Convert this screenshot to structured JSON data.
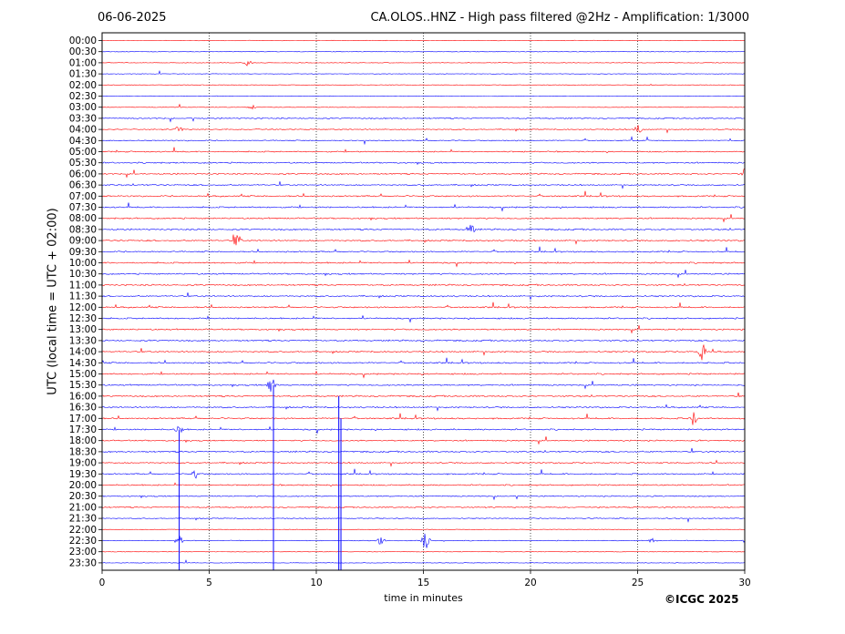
{
  "header": {
    "date": "06-06-2025",
    "title": "CA.OLOS..HNZ - High pass filtered @2Hz - Amplification: 1/3000"
  },
  "footer": {
    "copyright": "©ICGC 2025"
  },
  "chart_data": {
    "type": "line",
    "title": "CA.OLOS..HNZ - High pass filtered @2Hz - Amplification: 1/3000",
    "xlabel": "time in minutes",
    "ylabel": "UTC (local time = UTC + 02:00)",
    "xlim": [
      0,
      30
    ],
    "xticks": [
      "0",
      "5",
      "10",
      "15",
      "20",
      "25",
      "30"
    ],
    "grid": "vertical dotted lines at 5-minute intervals",
    "trace_colors": [
      "#ff0000",
      "#0000ff"
    ],
    "rows": [
      "00:00",
      "00:30",
      "01:00",
      "01:30",
      "02:00",
      "02:30",
      "03:00",
      "03:30",
      "04:00",
      "04:30",
      "05:00",
      "05:30",
      "06:00",
      "06:30",
      "07:00",
      "07:30",
      "08:00",
      "08:30",
      "09:00",
      "09:30",
      "10:00",
      "10:30",
      "11:00",
      "11:30",
      "12:00",
      "12:30",
      "13:00",
      "13:30",
      "14:00",
      "14:30",
      "15:00",
      "15:30",
      "16:00",
      "16:30",
      "17:00",
      "17:30",
      "18:00",
      "18:30",
      "19:00",
      "19:30",
      "20:00",
      "20:30",
      "21:00",
      "21:30",
      "22:00",
      "22:30",
      "23:00",
      "23:30"
    ],
    "activity": [
      0.05,
      0.05,
      0.1,
      0.05,
      0.05,
      0.05,
      0.1,
      0.6,
      0.5,
      0.5,
      0.6,
      0.7,
      0.7,
      0.7,
      0.8,
      0.8,
      0.8,
      0.8,
      0.8,
      0.7,
      0.8,
      0.8,
      0.8,
      0.8,
      0.8,
      0.8,
      0.8,
      0.8,
      0.8,
      0.8,
      0.8,
      0.8,
      0.8,
      0.8,
      0.8,
      0.8,
      0.7,
      0.8,
      0.7,
      0.7,
      0.7,
      0.6,
      0.6,
      0.4,
      0.05,
      0.2,
      0.05,
      0.1
    ],
    "events": [
      {
        "row": "01:00",
        "minute": 6.8,
        "amp": 4
      },
      {
        "row": "03:00",
        "minute": 7.0,
        "amp": 3
      },
      {
        "row": "04:00",
        "minute": 3.6,
        "amp": 4
      },
      {
        "row": "04:00",
        "minute": 25.0,
        "amp": 5
      },
      {
        "row": "06:00",
        "minute": 30.0,
        "amp": 6
      },
      {
        "row": "08:30",
        "minute": 17.2,
        "amp": 7
      },
      {
        "row": "09:00",
        "minute": 6.3,
        "amp": 9
      },
      {
        "row": "14:00",
        "minute": 28.0,
        "amp": 12
      },
      {
        "row": "15:30",
        "minute": 7.9,
        "amp": 12
      },
      {
        "row": "17:00",
        "minute": 27.6,
        "amp": 8
      },
      {
        "row": "17:30",
        "minute": 3.6,
        "amp": 6
      },
      {
        "row": "19:30",
        "minute": 4.3,
        "amp": 6
      },
      {
        "row": "22:30",
        "minute": 3.6,
        "amp": 8
      },
      {
        "row": "22:30",
        "minute": 15.1,
        "amp": 14
      },
      {
        "row": "22:30",
        "minute": 13.0,
        "amp": 5
      },
      {
        "row": "22:30",
        "minute": 25.7,
        "amp": 3
      }
    ],
    "spikes": [
      {
        "minute": 3.6,
        "from_row": "17:30",
        "to_row": "23:30",
        "color": "blue"
      },
      {
        "minute": 8.0,
        "from_row": "15:30",
        "to_row": "23:30",
        "color": "blue"
      },
      {
        "minute": 11.05,
        "from_row": "16:00",
        "to_row": "23:30",
        "color": "blue"
      },
      {
        "minute": 11.15,
        "from_row": "17:00",
        "to_row": "23:30",
        "color": "blue"
      }
    ]
  }
}
